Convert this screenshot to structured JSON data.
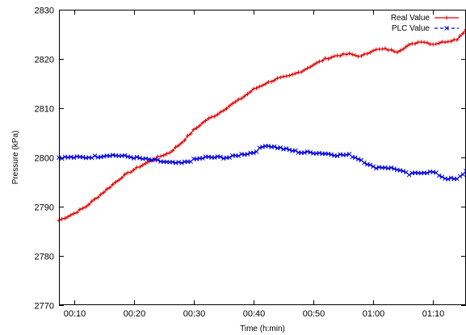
{
  "chart_data": {
    "type": "line",
    "xlabel": "Time (h:min)",
    "ylabel": "Pressure (kPa)",
    "xlim": [
      7.5,
      75.5
    ],
    "ylim": [
      2770,
      2830
    ],
    "x_unit": "minutes",
    "x_ticks": [
      10,
      20,
      30,
      40,
      50,
      60,
      70
    ],
    "x_tick_labels": [
      "00:10",
      "00:20",
      "00:30",
      "00:40",
      "00:50",
      "01:00",
      "01:10"
    ],
    "y_ticks": [
      2770,
      2780,
      2790,
      2800,
      2810,
      2820,
      2830
    ],
    "y_tick_labels": [
      "2770",
      "2780",
      "2790",
      "2800",
      "2810",
      "2820",
      "2830"
    ],
    "grid": false,
    "legend_position": "top-right",
    "series": [
      {
        "name": "Real Value",
        "color": "#e00000",
        "line_style": "solid",
        "marker": "plus",
        "x": [
          7.5,
          10,
          12,
          14,
          16,
          18,
          20,
          22,
          24,
          26,
          28,
          30,
          32,
          34,
          36,
          38,
          40,
          42,
          44,
          46,
          48,
          50,
          52,
          54,
          56,
          58,
          60,
          62,
          64,
          66,
          68,
          70,
          72,
          74,
          75.5
        ],
        "y": [
          2787.2,
          2788.6,
          2790.0,
          2792.0,
          2794.0,
          2796.0,
          2797.5,
          2798.8,
          2800.0,
          2801.0,
          2803.0,
          2805.5,
          2807.5,
          2808.8,
          2810.5,
          2812.0,
          2813.8,
          2815.0,
          2816.0,
          2816.5,
          2817.5,
          2818.8,
          2820.0,
          2820.7,
          2821.0,
          2820.5,
          2821.8,
          2822.0,
          2821.5,
          2822.8,
          2823.6,
          2823.0,
          2823.5,
          2824.0,
          2826.0
        ]
      },
      {
        "name": "PLC Value",
        "color": "#0000e0",
        "line_style": "dashed",
        "marker": "cross",
        "x": [
          7.5,
          10,
          12,
          14,
          16,
          18,
          20,
          22,
          24,
          26,
          28,
          30,
          32,
          34,
          36,
          38,
          40,
          42,
          44,
          46,
          48,
          50,
          52,
          54,
          56,
          58,
          60,
          62,
          64,
          66,
          68,
          70,
          72,
          74,
          75.5
        ],
        "y": [
          2800.0,
          2800.0,
          2800.0,
          2800.2,
          2800.5,
          2800.3,
          2800.0,
          2799.6,
          2799.3,
          2798.9,
          2798.8,
          2799.5,
          2800.0,
          2800.0,
          2800.0,
          2800.6,
          2801.0,
          2802.5,
          2802.0,
          2801.5,
          2801.0,
          2801.0,
          2800.8,
          2800.5,
          2800.5,
          2799.5,
          2798.0,
          2798.0,
          2797.6,
          2796.5,
          2797.0,
          2797.0,
          2795.8,
          2795.5,
          2797.2
        ]
      }
    ]
  }
}
